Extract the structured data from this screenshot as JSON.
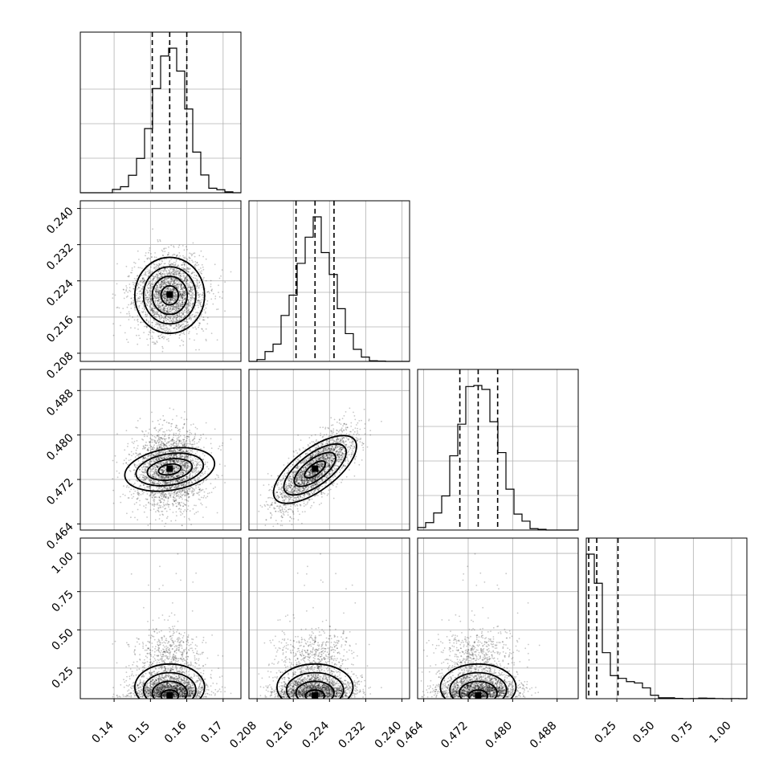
{
  "chart_data": {
    "type": "corner",
    "parameters": [
      {
        "ticks": [
          "0.14",
          "0.15",
          "0.16",
          "0.17"
        ],
        "tick_values": [
          0.14,
          0.15,
          0.16,
          0.17
        ],
        "range": [
          0.1307,
          0.1749
        ],
        "quantiles": [
          0.1505,
          0.1553,
          0.16
        ],
        "mode": 0.1553,
        "sigma": 0.0048
      },
      {
        "ticks": [
          "0.208",
          "0.216",
          "0.224",
          "0.232",
          "0.240"
        ],
        "tick_values": [
          0.208,
          0.216,
          0.224,
          0.232,
          0.24
        ],
        "range": [
          0.2062,
          0.2417
        ],
        "quantiles": [
          0.2166,
          0.2208,
          0.225
        ],
        "mode": 0.2208,
        "sigma": 0.0042
      },
      {
        "ticks": [
          "0.464",
          "0.472",
          "0.480",
          "0.488"
        ],
        "tick_values": [
          0.464,
          0.472,
          0.48,
          0.488
        ],
        "range": [
          0.4629,
          0.4918
        ],
        "quantiles": [
          0.4705,
          0.4738,
          0.4773
        ],
        "mode": 0.4738,
        "sigma": 0.0034
      },
      {
        "ticks": [
          "0.25",
          "0.50",
          "0.75",
          "1.00"
        ],
        "tick_values": [
          0.25,
          0.5,
          0.75,
          1.0
        ],
        "range": [
          0.05,
          1.1
        ],
        "quantiles": [
          0.0661,
          0.1185,
          0.2575
        ],
        "mode": 0.08,
        "sigma": 0.09
      }
    ],
    "y_ticks": {
      "1": [
        "0.208",
        "0.216",
        "0.224",
        "0.232",
        "0.240"
      ],
      "2": [
        "0.464",
        "0.472",
        "0.480",
        "0.488"
      ],
      "3": [
        "0.25",
        "0.50",
        "0.75",
        "1.00"
      ]
    },
    "correlations": {
      "1_0": 0.0,
      "2_0": 0.15,
      "2_1": 0.75,
      "3_0": 0.0,
      "3_1": 0.0,
      "3_2": 0.0
    },
    "grid": true,
    "quantile_lines": "dashed"
  }
}
